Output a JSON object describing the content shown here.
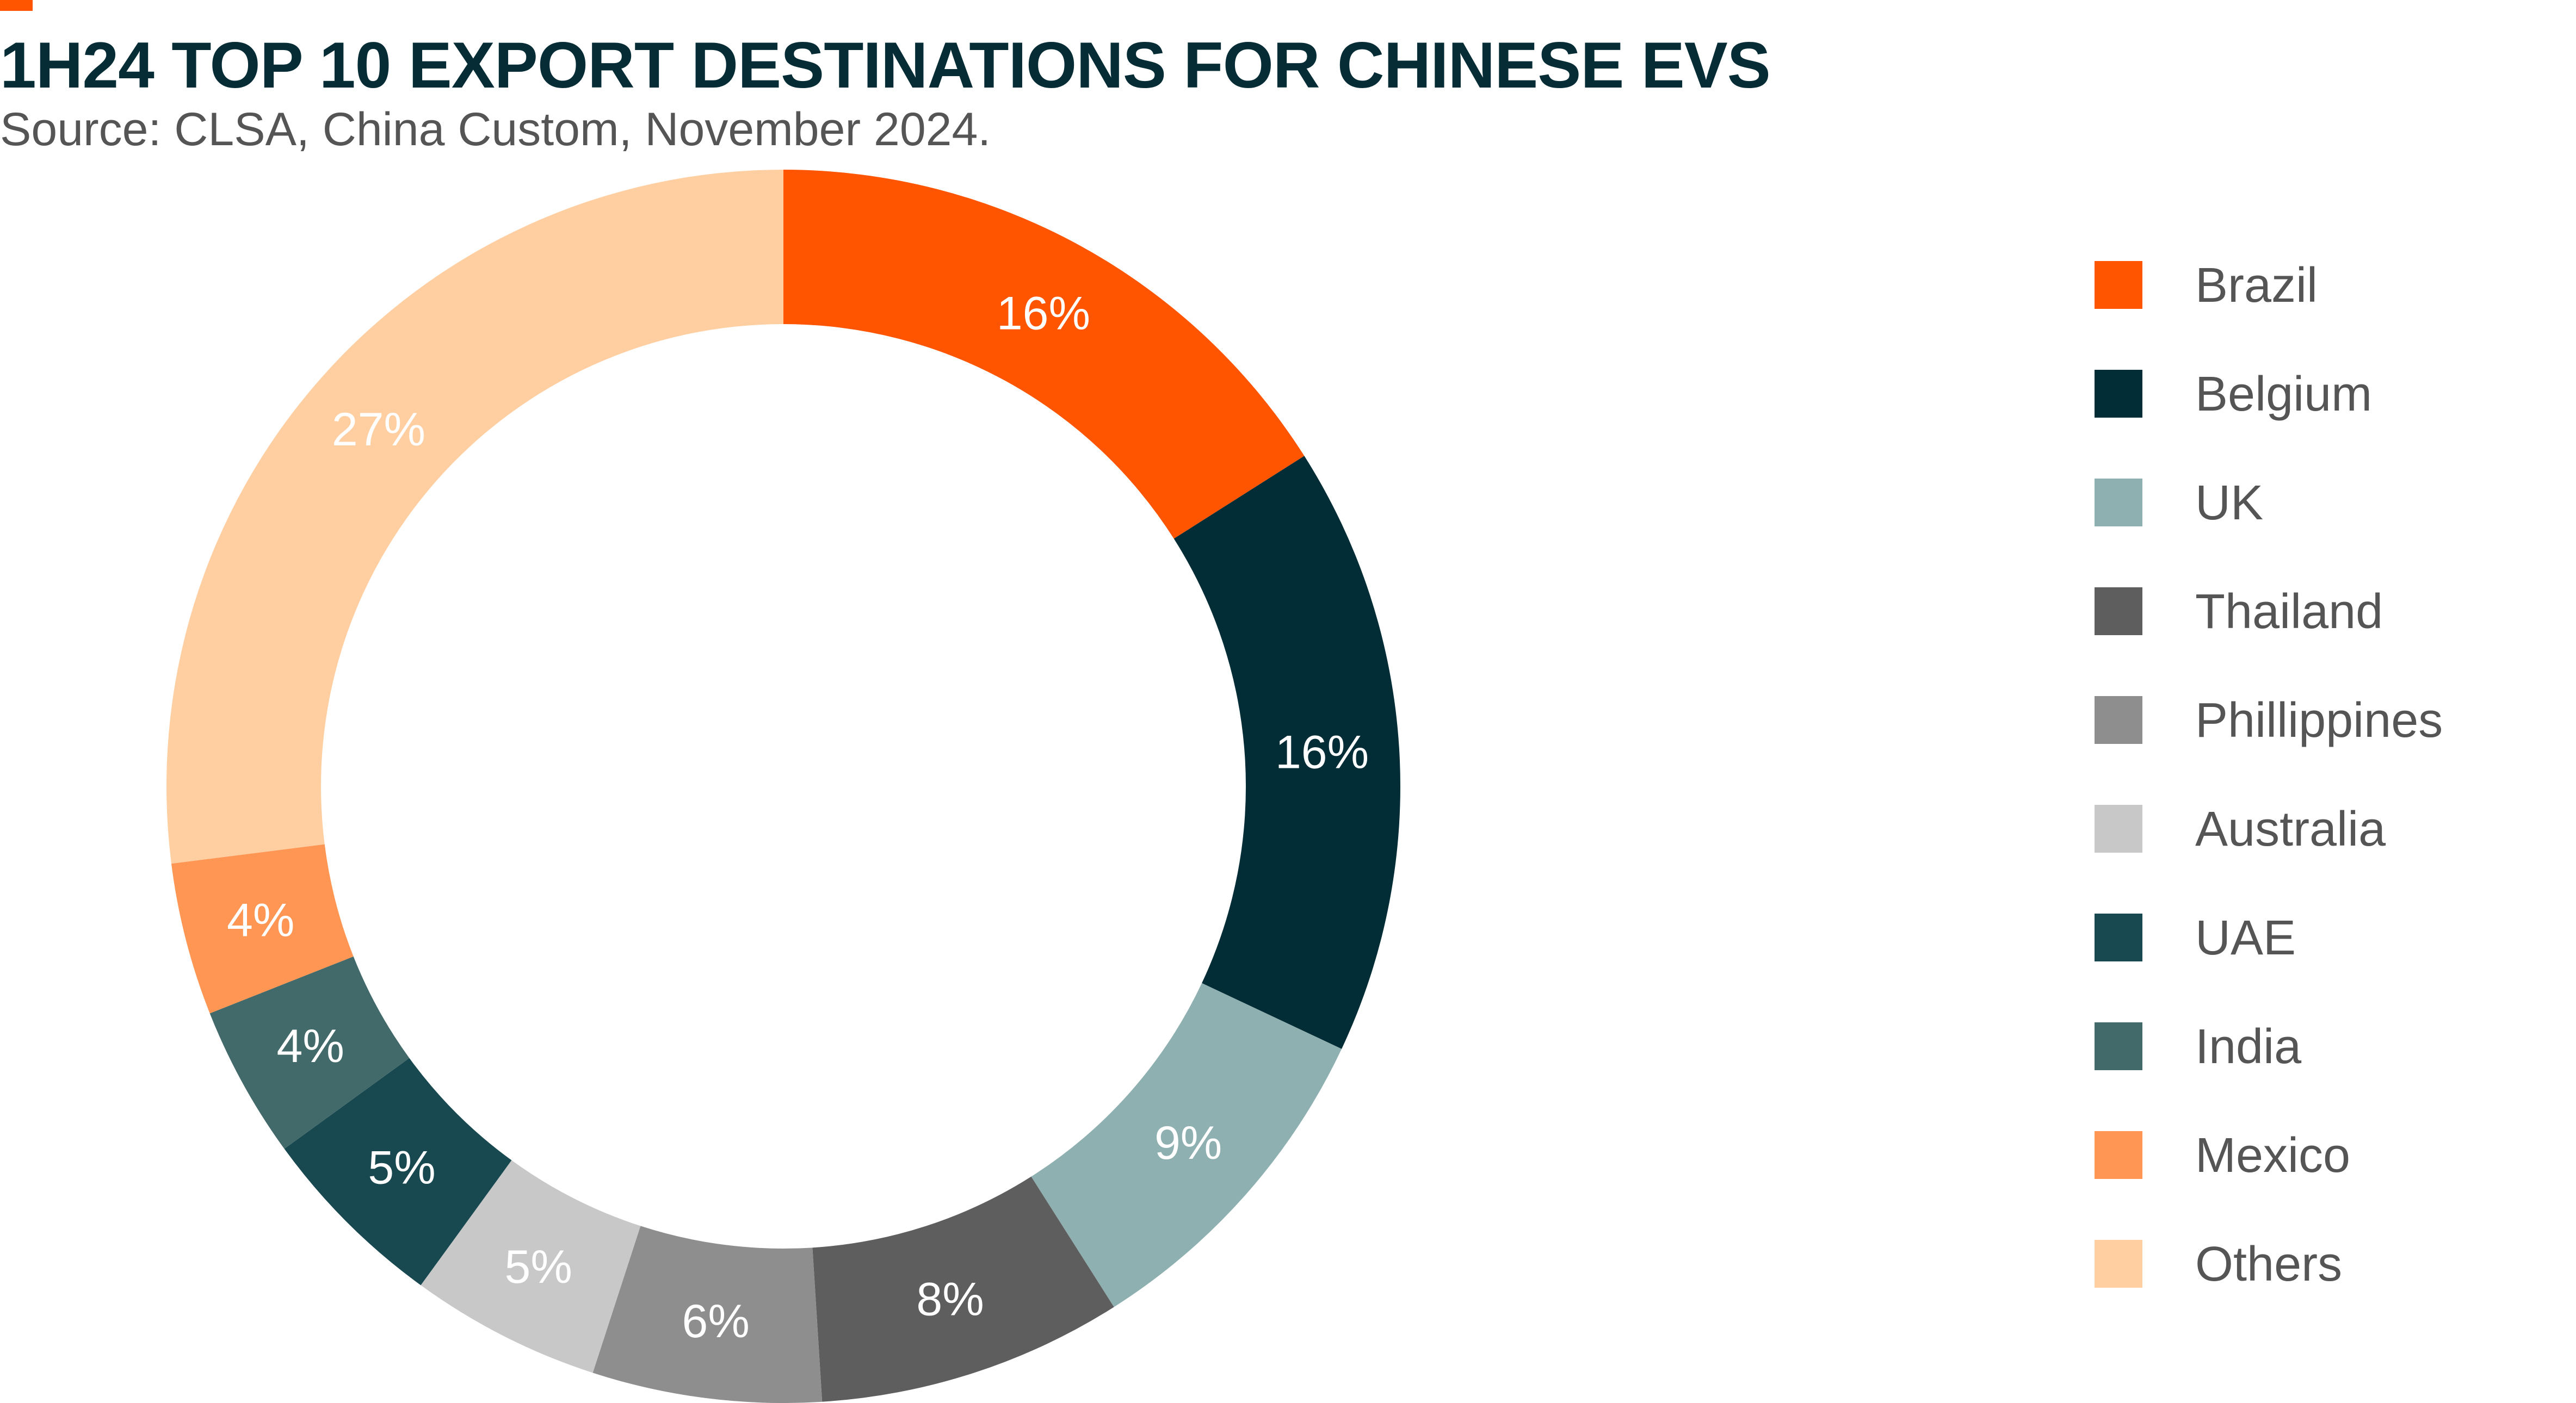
{
  "header": {
    "title": "1H24 TOP 10 EXPORT DESTINATIONS FOR CHINESE EVS",
    "subtitle": "Source: CLSA, China Custom, November 2024."
  },
  "colors": {
    "accent": "#ff5500",
    "title": "#062d36",
    "text": "#555555"
  },
  "chart_data": {
    "type": "pie",
    "variant": "donut",
    "title": "1H24 TOP 10 EXPORT DESTINATIONS FOR CHINESE EVS",
    "legend_position": "right",
    "slices": [
      {
        "name": "Brazil",
        "value": 16,
        "label": "16%",
        "color": "#ff5500"
      },
      {
        "name": "Belgium",
        "value": 16,
        "label": "16%",
        "color": "#032d36"
      },
      {
        "name": "UK",
        "value": 9,
        "label": "9%",
        "color": "#8fb0b1"
      },
      {
        "name": "Thailand",
        "value": 8,
        "label": "8%",
        "color": "#5e5e5e"
      },
      {
        "name": "Phillippines",
        "value": 6,
        "label": "6%",
        "color": "#8e8e8e"
      },
      {
        "name": "Australia",
        "value": 5,
        "label": "5%",
        "color": "#c8c8c8"
      },
      {
        "name": "UAE",
        "value": 5,
        "label": "5%",
        "color": "#194950"
      },
      {
        "name": "India",
        "value": 4,
        "label": "4%",
        "color": "#436a6a"
      },
      {
        "name": "Mexico",
        "value": 4,
        "label": "4%",
        "color": "#ff9653"
      },
      {
        "name": "Others",
        "value": 27,
        "label": "27%",
        "color": "#ffcfa2"
      }
    ]
  }
}
